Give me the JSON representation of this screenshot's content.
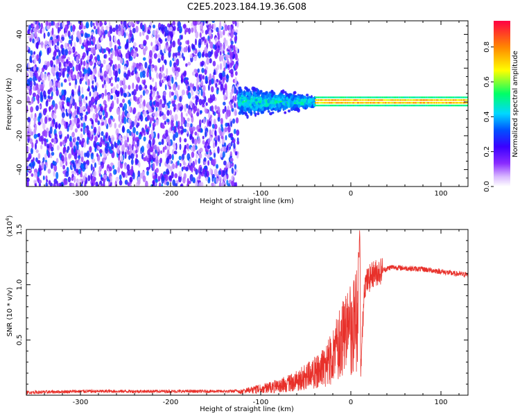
{
  "title": "C2E5.2023.184.19.36.G08",
  "colors": {
    "snr_line": "#e8302a",
    "axis": "#000000",
    "spectrogram_scale": [
      "#ffffff",
      "#d9b8ff",
      "#8a2bff",
      "#3a00ff",
      "#0050ff",
      "#00d8ff",
      "#00ff66",
      "#ffff00",
      "#ff8800",
      "#ff0044"
    ]
  },
  "chart_data": [
    {
      "type": "heatmap",
      "xlabel": "Height of straight line (km)",
      "ylabel": "Frequency (Hz)",
      "xlim": [
        -360,
        130
      ],
      "ylim": [
        -50,
        48
      ],
      "xticks": [
        -300,
        -200,
        -100,
        0,
        100
      ],
      "xtick_labels": [
        "-300",
        "-200",
        "-100",
        "0",
        "100"
      ],
      "yticks": [
        -40,
        -20,
        0,
        20,
        40
      ],
      "ytick_labels": [
        "-40",
        "-20",
        "0",
        "20",
        "40"
      ],
      "grid": false,
      "colorbar": {
        "label": "Normalized spectral amplitude",
        "range": [
          0.0,
          0.95
        ],
        "ticks": [
          0.0,
          0.2,
          0.4,
          0.6,
          0.8
        ],
        "tick_labels": [
          "0.0",
          "0.2",
          "0.4",
          "0.6",
          "0.8"
        ]
      },
      "regions": [
        {
          "x": [
            -360,
            -125
          ],
          "freq": [
            -50,
            48
          ],
          "amplitude": [
            0.05,
            0.35
          ],
          "pattern": "broadband noise"
        },
        {
          "x": [
            -125,
            -40
          ],
          "freq": [
            -12,
            12
          ],
          "amplitude": [
            0.2,
            0.55
          ],
          "pattern": "clustered near 0 Hz"
        },
        {
          "x": [
            -40,
            130
          ],
          "freq": [
            -3,
            3
          ],
          "amplitude": [
            0.4,
            0.95
          ],
          "pattern": "narrow band at 0 Hz"
        }
      ]
    },
    {
      "type": "line",
      "xlabel": "Height of straight line (km)",
      "ylabel": "SNR (10 * v/v)",
      "y_multiplier_label": "(x10",
      "y_multiplier_exp": "4",
      "y_multiplier_close": ")",
      "xlim": [
        -360,
        130
      ],
      "ylim": [
        0,
        15000
      ],
      "xticks": [
        -300,
        -200,
        -100,
        0,
        100
      ],
      "xtick_labels": [
        "-300",
        "-200",
        "-100",
        "0",
        "100"
      ],
      "yticks": [
        5000,
        10000,
        15000
      ],
      "ytick_labels": [
        "0.5",
        "1.0",
        "1.5"
      ],
      "grid": false,
      "series": [
        {
          "x": [
            -360,
            -300,
            -200,
            -130,
            -110,
            -90,
            -70,
            -50,
            -40,
            -30,
            -20,
            -12,
            -5,
            0,
            5,
            9,
            10,
            11,
            15,
            25,
            35,
            45,
            60,
            80,
            100,
            115,
            130
          ],
          "y": [
            250,
            350,
            350,
            350,
            800,
            1200,
            1800,
            2800,
            3500,
            4500,
            6000,
            8000,
            9500,
            10000,
            11000,
            12500,
            15000,
            2000,
            10000,
            11000,
            11300,
            11600,
            11500,
            11400,
            11200,
            11000,
            10900
          ]
        }
      ]
    }
  ]
}
